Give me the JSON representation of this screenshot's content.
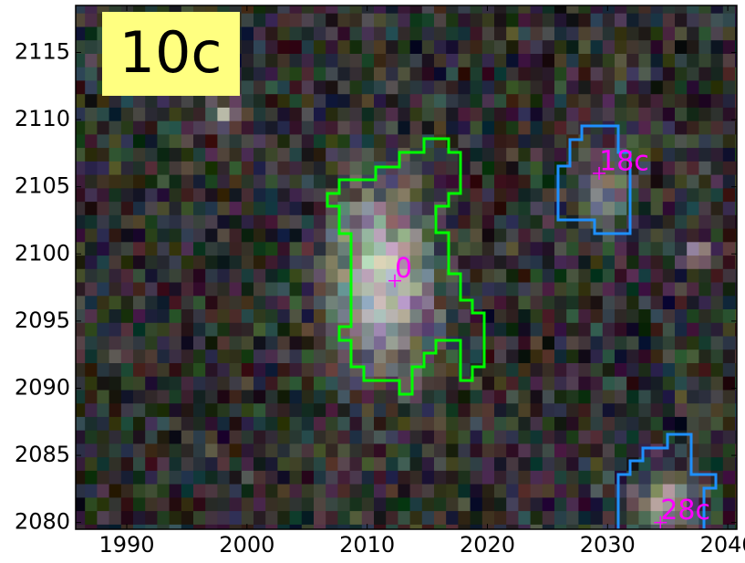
{
  "chart_data": {
    "type": "image",
    "title": "10c",
    "xlim": [
      1985.75,
      2040.75
    ],
    "ylim": [
      2079.5,
      2118.5
    ],
    "xticks": [
      1990,
      2000,
      2010,
      2020,
      2030,
      2040
    ],
    "yticks": [
      2080,
      2085,
      2090,
      2095,
      2100,
      2105,
      2110,
      2115
    ],
    "annotations": [
      {
        "text": "0",
        "x": 2012.3,
        "y": 2098
      },
      {
        "text": "18c",
        "x": 2029.3,
        "y": 2106
      },
      {
        "text": "28c",
        "x": 2034.4,
        "y": 2080
      }
    ],
    "marker_color": "#ff00ff"
  }
}
